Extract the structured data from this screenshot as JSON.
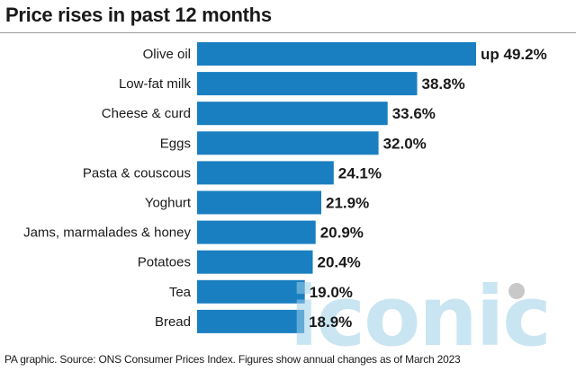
{
  "chart_data": {
    "type": "bar",
    "orientation": "horizontal",
    "title": "Price rises in past 12 months",
    "categories": [
      "Olive oil",
      "Low-fat milk",
      "Cheese & curd",
      "Eggs",
      "Pasta & couscous",
      "Yoghurt",
      "Jams, marmalades & honey",
      "Potatoes",
      "Tea",
      "Bread"
    ],
    "values": [
      49.2,
      38.8,
      33.6,
      32.0,
      24.1,
      21.9,
      20.9,
      20.4,
      19.0,
      18.9
    ],
    "value_labels": [
      "up 49.2%",
      "38.8%",
      "33.6%",
      "32.0%",
      "24.1%",
      "21.9%",
      "20.9%",
      "20.4%",
      "19.0%",
      "18.9%"
    ],
    "bar_color": "#1a7fc0",
    "xlim": [
      0,
      49.2
    ],
    "grid": false,
    "legend": "none"
  },
  "footer": {
    "source": "PA graphic. Source: ONS Consumer Prices Index. Figures show annual changes as of March 2023"
  },
  "watermark": {
    "text": "iconic",
    "color": "#9fd0e8",
    "dot_color": "#c8c8c8"
  }
}
